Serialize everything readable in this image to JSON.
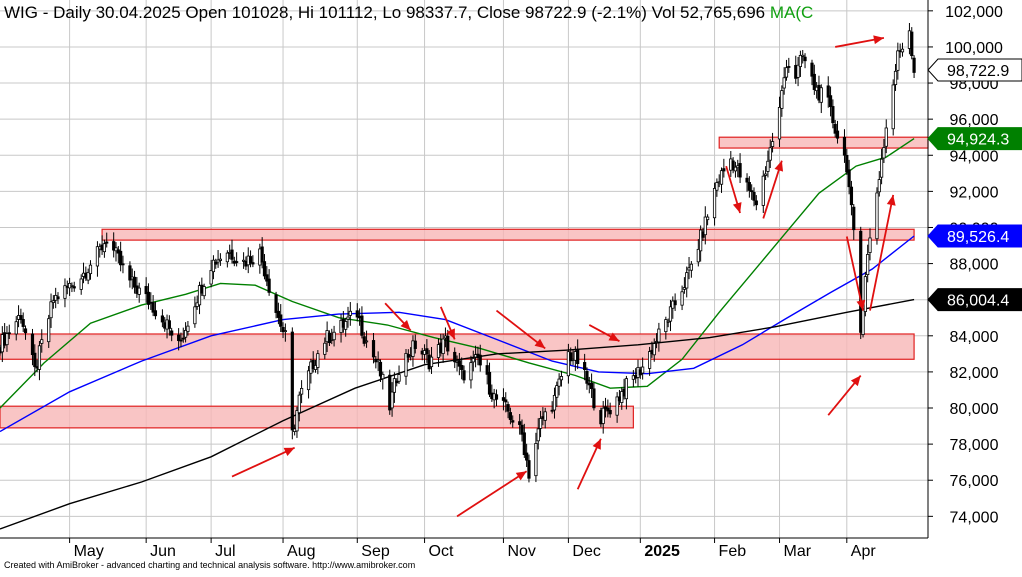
{
  "chart_data": {
    "type": "candlestick",
    "header": {
      "symbol": "WIG",
      "text": "WIG - Daily 30.04.2025 Open 101028, Hi 101112, Lo 98337.7, Close 98722.9 (-2.1%) Vol 52,765,696",
      "ma_text": "MA(C"
    },
    "footer": "Created with AmiBroker - advanced charting and technical analysis software. http://www.amibroker.com",
    "y_axis": {
      "min": 72800,
      "max": 102600,
      "ticks": [
        102000,
        100000,
        98000,
        96000,
        94000,
        92000,
        90000,
        88000,
        86000,
        84000,
        82000,
        80000,
        78000,
        76000,
        74000
      ],
      "tick_labels": [
        "102,000",
        "100,000",
        "98,000",
        "96,000",
        "94,000",
        "92,000",
        "90,000",
        "88,000",
        "86,000",
        "84,000",
        "82,000",
        "80,000",
        "78,000",
        "76,000",
        "74,000"
      ]
    },
    "x_axis": {
      "months": [
        {
          "label": "May",
          "date": "2024-05-01",
          "bold": false
        },
        {
          "label": "Jun",
          "date": "2024-06-03",
          "bold": false
        },
        {
          "label": "Jul",
          "date": "2024-07-01",
          "bold": false
        },
        {
          "label": "Aug",
          "date": "2024-08-01",
          "bold": false
        },
        {
          "label": "Sep",
          "date": "2024-09-02",
          "bold": false
        },
        {
          "label": "Oct",
          "date": "2024-10-01",
          "bold": false
        },
        {
          "label": "Nov",
          "date": "2024-11-04",
          "bold": false
        },
        {
          "label": "Dec",
          "date": "2024-12-02",
          "bold": false
        },
        {
          "label": "2025",
          "date": "2025-01-02",
          "bold": true
        },
        {
          "label": "Feb",
          "date": "2025-02-03",
          "bold": false
        },
        {
          "label": "Mar",
          "date": "2025-03-03",
          "bold": false
        },
        {
          "label": "Apr",
          "date": "2025-04-01",
          "bold": false
        }
      ]
    },
    "price_path": [
      [
        "2024-04-01",
        83500
      ],
      [
        "2024-04-10",
        85200
      ],
      [
        "2024-04-16",
        82000
      ],
      [
        "2024-04-24",
        86000
      ],
      [
        "2024-05-06",
        87300
      ],
      [
        "2024-05-13",
        88500
      ],
      [
        "2024-05-17",
        89400
      ],
      [
        "2024-05-27",
        87000
      ],
      [
        "2024-06-05",
        85800
      ],
      [
        "2024-06-12",
        84600
      ],
      [
        "2024-06-17",
        83400
      ],
      [
        "2024-06-24",
        85900
      ],
      [
        "2024-07-01",
        88000
      ],
      [
        "2024-07-08",
        88700
      ],
      [
        "2024-07-15",
        88100
      ],
      [
        "2024-07-22",
        88600
      ],
      [
        "2024-07-29",
        85400
      ],
      [
        "2024-08-02",
        83900
      ],
      [
        "2024-08-05",
        78500
      ],
      [
        "2024-08-08",
        80500
      ],
      [
        "2024-08-14",
        82500
      ],
      [
        "2024-08-19",
        83800
      ],
      [
        "2024-08-26",
        84500
      ],
      [
        "2024-09-02",
        85300
      ],
      [
        "2024-09-05",
        84000
      ],
      [
        "2024-09-11",
        82300
      ],
      [
        "2024-09-16",
        80100
      ],
      [
        "2024-09-20",
        82300
      ],
      [
        "2024-09-27",
        83500
      ],
      [
        "2024-10-03",
        82600
      ],
      [
        "2024-10-10",
        83700
      ],
      [
        "2024-10-17",
        81800
      ],
      [
        "2024-10-24",
        82700
      ],
      [
        "2024-10-31",
        80600
      ],
      [
        "2024-11-06",
        79800
      ],
      [
        "2024-11-12",
        78500
      ],
      [
        "2024-11-15",
        76400
      ],
      [
        "2024-11-20",
        79200
      ],
      [
        "2024-11-26",
        80500
      ],
      [
        "2024-12-02",
        83000
      ],
      [
        "2024-12-06",
        82600
      ],
      [
        "2024-12-11",
        81100
      ],
      [
        "2024-12-16",
        79500
      ],
      [
        "2024-12-20",
        80000
      ],
      [
        "2024-12-27",
        81200
      ],
      [
        "2025-01-03",
        82300
      ],
      [
        "2025-01-09",
        83800
      ],
      [
        "2025-01-16",
        85500
      ],
      [
        "2025-01-23",
        87500
      ],
      [
        "2025-01-29",
        89800
      ],
      [
        "2025-02-04",
        92500
      ],
      [
        "2025-02-10",
        93800
      ],
      [
        "2025-02-17",
        92200
      ],
      [
        "2025-02-21",
        91400
      ],
      [
        "2025-02-25",
        93200
      ],
      [
        "2025-03-03",
        96500
      ],
      [
        "2025-03-06",
        99200
      ],
      [
        "2025-03-10",
        98400
      ],
      [
        "2025-03-13",
        99500
      ],
      [
        "2025-03-18",
        97800
      ],
      [
        "2025-03-24",
        96800
      ],
      [
        "2025-03-27",
        95500
      ],
      [
        "2025-04-01",
        93500
      ],
      [
        "2025-04-04",
        89500
      ],
      [
        "2025-04-07",
        84200
      ],
      [
        "2025-04-09",
        87500
      ],
      [
        "2025-04-14",
        92000
      ],
      [
        "2025-04-18",
        95500
      ],
      [
        "2025-04-23",
        99500
      ],
      [
        "2025-04-28",
        101000
      ],
      [
        "2025-04-30",
        98722.9
      ]
    ],
    "last_bar": {
      "date": "2025-04-30",
      "open": 101028,
      "high": 101112,
      "low": 98337.7,
      "close": 98722.9
    },
    "series": [
      {
        "name": "close",
        "color": "#000000",
        "label": "98,722.9",
        "value": 98722.9
      },
      {
        "name": "ma-short",
        "color": "#008000",
        "label": "94,924.3",
        "value": 94924.3,
        "points": [
          [
            "2024-04-01",
            80000
          ],
          [
            "2024-04-20",
            82500
          ],
          [
            "2024-05-10",
            84700
          ],
          [
            "2024-06-01",
            85700
          ],
          [
            "2024-06-20",
            86300
          ],
          [
            "2024-07-05",
            86900
          ],
          [
            "2024-07-20",
            86800
          ],
          [
            "2024-08-05",
            85900
          ],
          [
            "2024-08-25",
            85000
          ],
          [
            "2024-09-15",
            84600
          ],
          [
            "2024-10-05",
            83900
          ],
          [
            "2024-10-25",
            83300
          ],
          [
            "2024-11-15",
            82500
          ],
          [
            "2024-12-05",
            81800
          ],
          [
            "2024-12-20",
            81100
          ],
          [
            "2025-01-05",
            81200
          ],
          [
            "2025-01-20",
            82700
          ],
          [
            "2025-02-05",
            85300
          ],
          [
            "2025-02-20",
            87600
          ],
          [
            "2025-03-05",
            89600
          ],
          [
            "2025-03-20",
            91900
          ],
          [
            "2025-04-05",
            93400
          ],
          [
            "2025-04-18",
            93900
          ],
          [
            "2025-04-30",
            94924.3
          ]
        ]
      },
      {
        "name": "ma-medium",
        "color": "#0000ff",
        "label": "89,526.4",
        "value": 89526.4,
        "points": [
          [
            "2024-04-01",
            78700
          ],
          [
            "2024-05-01",
            80900
          ],
          [
            "2024-06-01",
            82600
          ],
          [
            "2024-07-01",
            84000
          ],
          [
            "2024-08-01",
            84900
          ],
          [
            "2024-08-25",
            85200
          ],
          [
            "2024-09-20",
            85300
          ],
          [
            "2024-10-10",
            84900
          ],
          [
            "2024-11-01",
            83800
          ],
          [
            "2024-11-25",
            82600
          ],
          [
            "2024-12-15",
            82000
          ],
          [
            "2025-01-05",
            81900
          ],
          [
            "2025-01-25",
            82200
          ],
          [
            "2025-02-15",
            83500
          ],
          [
            "2025-03-05",
            84900
          ],
          [
            "2025-03-25",
            86400
          ],
          [
            "2025-04-12",
            87700
          ],
          [
            "2025-04-30",
            89526.4
          ]
        ]
      },
      {
        "name": "ma-long",
        "color": "#000000",
        "label": "86,004.4",
        "value": 86004.4,
        "points": [
          [
            "2024-04-01",
            73300
          ],
          [
            "2024-05-01",
            74700
          ],
          [
            "2024-06-01",
            75900
          ],
          [
            "2024-07-01",
            77300
          ],
          [
            "2024-08-01",
            79300
          ],
          [
            "2024-09-01",
            81100
          ],
          [
            "2024-10-01",
            82400
          ],
          [
            "2024-11-01",
            83000
          ],
          [
            "2024-12-01",
            83200
          ],
          [
            "2025-01-01",
            83500
          ],
          [
            "2025-02-01",
            83900
          ],
          [
            "2025-03-01",
            84500
          ],
          [
            "2025-04-01",
            85300
          ],
          [
            "2025-04-30",
            86004.4
          ]
        ]
      }
    ],
    "zones": [
      {
        "x0": "2024-04-01",
        "x1": "2024-12-30",
        "y0": 78900,
        "y1": 80100
      },
      {
        "x0": "2024-04-01",
        "x1": "2025-04-30",
        "y0": 82700,
        "y1": 84100
      },
      {
        "x0": "2024-05-15",
        "x1": "2025-04-30",
        "y0": 89300,
        "y1": 89900
      },
      {
        "x0": "2025-02-05",
        "x1": "2025-05-06",
        "y0": 94400,
        "y1": 95000
      }
    ],
    "arrows": [
      {
        "from": [
          "2024-07-10",
          76200
        ],
        "to": [
          "2024-08-06",
          77800
        ]
      },
      {
        "from": [
          "2024-10-15",
          74000
        ],
        "to": [
          "2024-11-14",
          76500
        ]
      },
      {
        "from": [
          "2024-12-06",
          75500
        ],
        "to": [
          "2024-12-16",
          78300
        ]
      },
      {
        "from": [
          "2024-09-14",
          85800
        ],
        "to": [
          "2024-09-25",
          84300
        ]
      },
      {
        "from": [
          "2024-10-08",
          85600
        ],
        "to": [
          "2024-10-14",
          83800
        ]
      },
      {
        "from": [
          "2024-11-01",
          85400
        ],
        "to": [
          "2024-11-22",
          83300
        ]
      },
      {
        "from": [
          "2024-12-11",
          84600
        ],
        "to": [
          "2024-12-24",
          83700
        ]
      },
      {
        "from": [
          "2025-02-08",
          93400
        ],
        "to": [
          "2025-02-14",
          90800
        ]
      },
      {
        "from": [
          "2025-02-24",
          90500
        ],
        "to": [
          "2025-03-04",
          93700
        ]
      },
      {
        "from": [
          "2025-03-27",
          100000
        ],
        "to": [
          "2025-04-17",
          100500
        ]
      },
      {
        "from": [
          "2025-03-24",
          79600
        ],
        "to": [
          "2025-04-07",
          81800
        ]
      },
      {
        "from": [
          "2025-04-01",
          89500
        ],
        "to": [
          "2025-04-08",
          85400
        ]
      },
      {
        "from": [
          "2025-04-11",
          85400
        ],
        "to": [
          "2025-04-21",
          91800
        ]
      }
    ]
  }
}
